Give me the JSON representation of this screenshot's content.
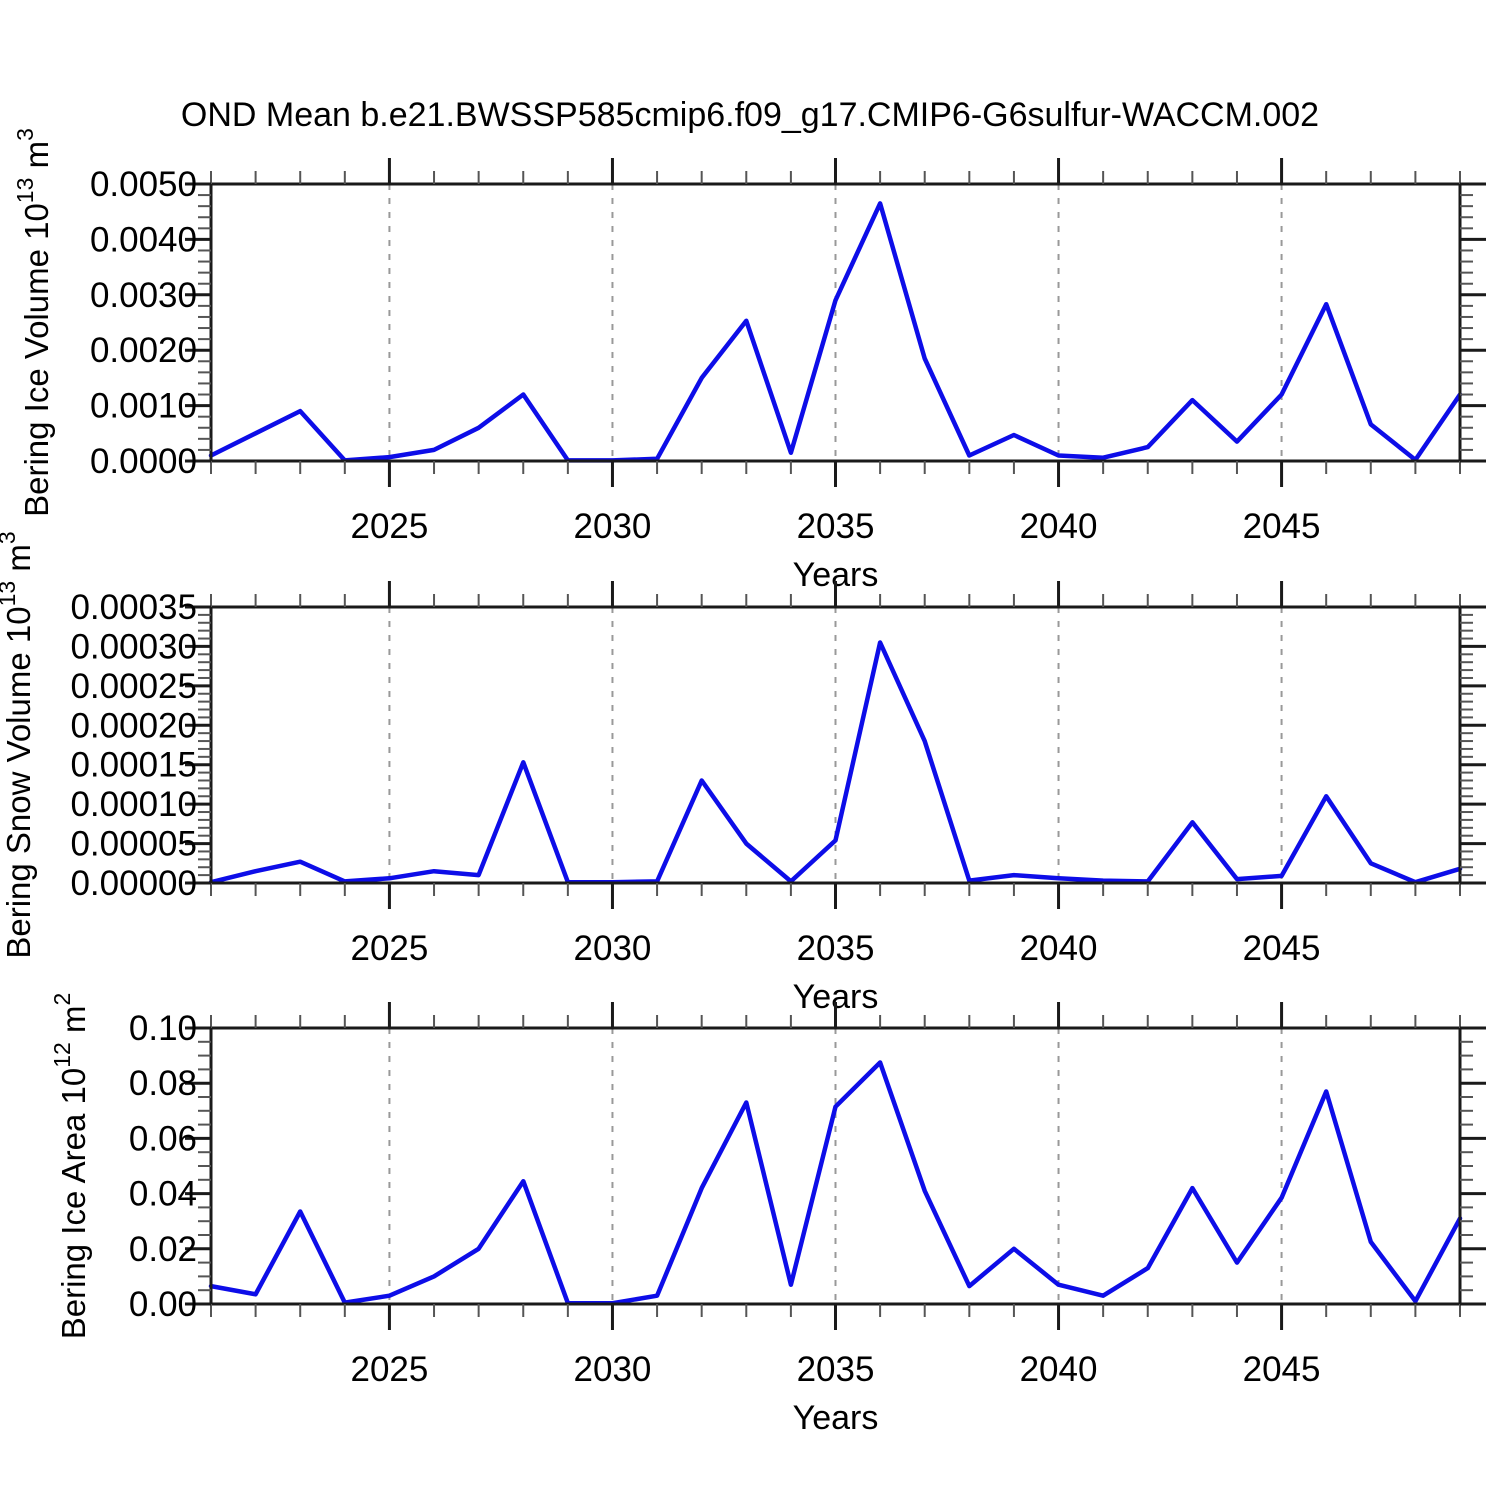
{
  "title": "OND Mean b.e21.BWSSP585cmip6.f09_g17.CMIP6-G6sulfur-WACCM.002",
  "colors": {
    "line": "#0d0de8",
    "grid": "#999999",
    "frame": "#1a1a1a",
    "tick_minor": "#555555",
    "text": "#000000"
  },
  "chart_data": [
    {
      "type": "line",
      "title": "",
      "ylabel": "Bering Ice Volume 10^13 m^3",
      "ylabel_parts": {
        "prefix": "Bering Ice Volume 10",
        "sup1": "13",
        "mid": " m",
        "sup2": "3"
      },
      "xlabel": "Years",
      "xlim": [
        2021,
        2049
      ],
      "ylim": [
        0,
        0.005
      ],
      "ytick_step": 0.001,
      "yminor_step": 0.0002,
      "ytick_decimals": 4,
      "xticks_labeled": [
        2025,
        2030,
        2035,
        2040,
        2045
      ],
      "grid": "vertical-dashed-at-labeled-xticks",
      "x": [
        2021,
        2022,
        2023,
        2024,
        2025,
        2026,
        2027,
        2028,
        2029,
        2030,
        2031,
        2032,
        2033,
        2034,
        2035,
        2036,
        2037,
        2038,
        2039,
        2040,
        2041,
        2042,
        2043,
        2044,
        2045,
        2046,
        2047,
        2048,
        2049
      ],
      "values": [
        0.0001,
        0.0005,
        0.0009,
        1e-05,
        7e-05,
        0.0002,
        0.0006,
        0.0012,
        1e-05,
        1e-05,
        4e-05,
        0.0015,
        0.00253,
        0.00015,
        0.0029,
        0.00465,
        0.00185,
        0.0001,
        0.00047,
        0.0001,
        6e-05,
        0.00025,
        0.0011,
        0.00035,
        0.0012,
        0.00283,
        0.00066,
        2e-05,
        0.0012
      ]
    },
    {
      "type": "line",
      "title": "",
      "ylabel": "Bering Snow Volume 10^13 m^3",
      "ylabel_parts": {
        "prefix": "Bering Snow Volume 10",
        "sup1": "13",
        "mid": " m",
        "sup2": "3"
      },
      "xlabel": "Years",
      "xlim": [
        2021,
        2049
      ],
      "ylim": [
        0,
        0.00035
      ],
      "ytick_step": 5e-05,
      "yminor_step": 1e-05,
      "ytick_decimals": 5,
      "xticks_labeled": [
        2025,
        2030,
        2035,
        2040,
        2045
      ],
      "grid": "vertical-dashed-at-labeled-xticks",
      "x": [
        2021,
        2022,
        2023,
        2024,
        2025,
        2026,
        2027,
        2028,
        2029,
        2030,
        2031,
        2032,
        2033,
        2034,
        2035,
        2036,
        2037,
        2038,
        2039,
        2040,
        2041,
        2042,
        2043,
        2044,
        2045,
        2046,
        2047,
        2048,
        2049
      ],
      "values": [
        1e-06,
        1.5e-05,
        2.7e-05,
        2e-06,
        6e-06,
        1.5e-05,
        1e-05,
        0.000153,
        1e-06,
        1e-06,
        2e-06,
        0.00013,
        5e-05,
        2e-06,
        5.4e-05,
        0.000305,
        0.00018,
        3e-06,
        1e-05,
        6e-06,
        3e-06,
        2e-06,
        7.7e-05,
        5e-06,
        9e-06,
        0.00011,
        2.5e-05,
        1e-06,
        1.8e-05
      ]
    },
    {
      "type": "line",
      "title": "",
      "ylabel": "Bering Ice Area 10^12 m^2",
      "ylabel_parts": {
        "prefix": "Bering Ice Area 10",
        "sup1": "12",
        "mid": " m",
        "sup2": "2"
      },
      "xlabel": "Years",
      "xlim": [
        2021,
        2049
      ],
      "ylim": [
        0,
        0.1
      ],
      "ytick_step": 0.02,
      "yminor_step": 0.005,
      "ytick_decimals": 2,
      "xticks_labeled": [
        2025,
        2030,
        2035,
        2040,
        2045
      ],
      "grid": "vertical-dashed-at-labeled-xticks",
      "x": [
        2021,
        2022,
        2023,
        2024,
        2025,
        2026,
        2027,
        2028,
        2029,
        2030,
        2031,
        2032,
        2033,
        2034,
        2035,
        2036,
        2037,
        2038,
        2039,
        2040,
        2041,
        2042,
        2043,
        2044,
        2045,
        2046,
        2047,
        2048,
        2049
      ],
      "values": [
        0.0065,
        0.0035,
        0.0335,
        0.0005,
        0.003,
        0.01,
        0.02,
        0.0445,
        0.0003,
        0.0003,
        0.003,
        0.042,
        0.073,
        0.007,
        0.0715,
        0.0875,
        0.041,
        0.0065,
        0.02,
        0.007,
        0.003,
        0.013,
        0.042,
        0.015,
        0.0385,
        0.077,
        0.0225,
        0.001,
        0.031
      ]
    }
  ]
}
